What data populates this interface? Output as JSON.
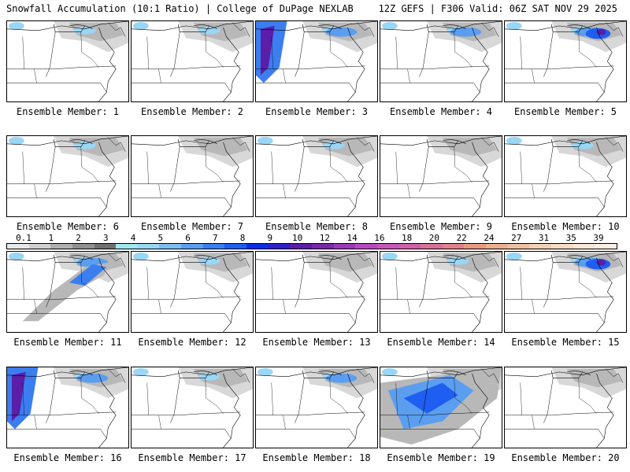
{
  "header": {
    "left_title": "Snowfall Accumulation (10:1 Ratio) | College of DuPage NEXLAB",
    "right_title": "12Z GEFS | F306 Valid: 06Z SAT NOV 29 2025"
  },
  "panel_prefix": "Ensemble Member:",
  "members": [
    {
      "label": "Ensemble Member: 1",
      "intensity": "light"
    },
    {
      "label": "Ensemble Member: 2",
      "intensity": "light"
    },
    {
      "label": "Ensemble Member: 3",
      "intensity": "heavy-west"
    },
    {
      "label": "Ensemble Member: 4",
      "intensity": "moderate"
    },
    {
      "label": "Ensemble Member: 5",
      "intensity": "moderate-east"
    },
    {
      "label": "Ensemble Member: 6",
      "intensity": "light"
    },
    {
      "label": "Ensemble Member: 7",
      "intensity": "trace"
    },
    {
      "label": "Ensemble Member: 8",
      "intensity": "light"
    },
    {
      "label": "Ensemble Member: 9",
      "intensity": "trace"
    },
    {
      "label": "Ensemble Member: 10",
      "intensity": "light"
    },
    {
      "label": "Ensemble Member: 11",
      "intensity": "band"
    },
    {
      "label": "Ensemble Member: 12",
      "intensity": "light"
    },
    {
      "label": "Ensemble Member: 13",
      "intensity": "trace"
    },
    {
      "label": "Ensemble Member: 14",
      "intensity": "light"
    },
    {
      "label": "Ensemble Member: 15",
      "intensity": "moderate-east"
    },
    {
      "label": "Ensemble Member: 16",
      "intensity": "heavy-west"
    },
    {
      "label": "Ensemble Member: 17",
      "intensity": "light"
    },
    {
      "label": "Ensemble Member: 18",
      "intensity": "moderate"
    },
    {
      "label": "Ensemble Member: 19",
      "intensity": "widespread"
    },
    {
      "label": "Ensemble Member: 20",
      "intensity": "trace"
    }
  ],
  "legend": {
    "labels": [
      "0.1",
      "1",
      "2",
      "3",
      "4",
      "5",
      "6",
      "7",
      "8",
      "9",
      "10",
      "12",
      "14",
      "16",
      "18",
      "20",
      "22",
      "24",
      "27",
      "31",
      "35",
      "39"
    ],
    "colors": [
      "#e8e8e8",
      "#d0d0d0",
      "#b0b0b0",
      "#909090",
      "#707070",
      "#9ee8f0",
      "#9ad6f5",
      "#7fbcf2",
      "#5b9ef0",
      "#3b7ef0",
      "#1e5ef0",
      "#0a2ee8",
      "#3020c8",
      "#5a1ea8",
      "#7a2aa8",
      "#9a3ab8",
      "#b848c0",
      "#c858b8",
      "#d060a8",
      "#d8709a",
      "#e0808a",
      "#e89a80",
      "#eab090",
      "#eec0a0",
      "#f2d0b4",
      "#f6dcc4",
      "#f8e6d6",
      "#fbeee4"
    ]
  }
}
